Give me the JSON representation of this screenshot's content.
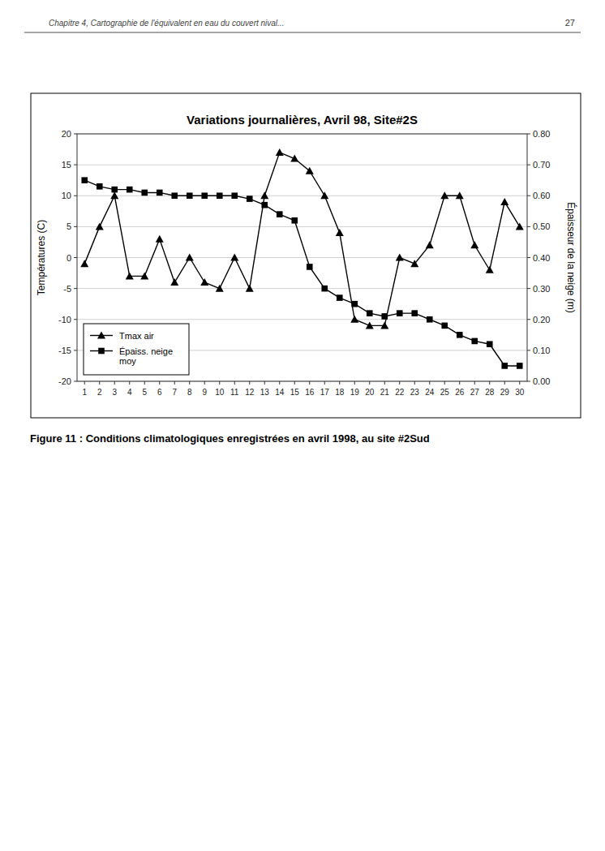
{
  "chart_data": {
    "type": "line",
    "title": "Variations journalières, Avril 98, Site#2S",
    "ylabel": "Températures (C)",
    "y2label": "Épaisseur de la neige (m)",
    "header": "Chapitre 4, Cartographie de l'équivalent en eau du couvert nival...",
    "page": "27",
    "caption": "Figure 11 : Conditions climatologiques enregistrées en avril 1998, au site #2Sud",
    "x": [
      1,
      2,
      3,
      4,
      5,
      6,
      7,
      8,
      9,
      10,
      11,
      12,
      13,
      14,
      15,
      16,
      17,
      18,
      19,
      20,
      21,
      22,
      23,
      24,
      25,
      26,
      27,
      28,
      29,
      30
    ],
    "xlim": [
      0.5,
      30.5
    ],
    "xticks": [
      1,
      2,
      3,
      4,
      5,
      6,
      7,
      8,
      9,
      10,
      11,
      12,
      13,
      14,
      15,
      16,
      17,
      18,
      19,
      20,
      21,
      22,
      23,
      24,
      25,
      26,
      27,
      28,
      29,
      30
    ],
    "ylim": [
      -20,
      20
    ],
    "yticks": [
      -20,
      -15,
      -10,
      -5,
      0,
      5,
      10,
      15,
      20
    ],
    "y2lim": [
      0.0,
      0.8
    ],
    "y2ticks": [
      {
        "value": 0.0,
        "label": "0.00"
      },
      {
        "value": 0.1,
        "label": "0.10"
      },
      {
        "value": 0.2,
        "label": "0.20"
      },
      {
        "value": 0.3,
        "label": "0.30"
      },
      {
        "value": 0.4,
        "label": "0.40"
      },
      {
        "value": 0.5,
        "label": "0.50"
      },
      {
        "value": 0.6,
        "label": "0.60"
      },
      {
        "value": 0.7,
        "label": "0.70"
      },
      {
        "value": 0.8,
        "label": "0.80"
      }
    ],
    "grid": true,
    "legend": "lower left",
    "series": [
      {
        "name": "Tmax air",
        "color": "#000000",
        "marker": "triangle",
        "values": [
          -1,
          5,
          10,
          -3,
          -3,
          3,
          -4,
          0,
          -4,
          -5,
          0,
          -5,
          10,
          17,
          16,
          14,
          10,
          4,
          -10,
          -11,
          -11,
          0,
          -1,
          2,
          10,
          10,
          2,
          -2,
          9,
          5
        ]
      },
      {
        "name": "Épaiss. neige\nmoy",
        "color": "#000000",
        "marker": "square",
        "axis": "y2",
        "values": [
          0.65,
          0.63,
          0.62,
          0.62,
          0.61,
          0.61,
          0.6,
          0.6,
          0.6,
          0.6,
          0.6,
          0.59,
          0.57,
          0.54,
          0.52,
          0.37,
          0.3,
          0.27,
          0.25,
          0.22,
          0.21,
          0.22,
          0.22,
          0.2,
          0.18,
          0.15,
          0.13,
          0.12,
          0.05,
          0.05
        ]
      }
    ]
  }
}
